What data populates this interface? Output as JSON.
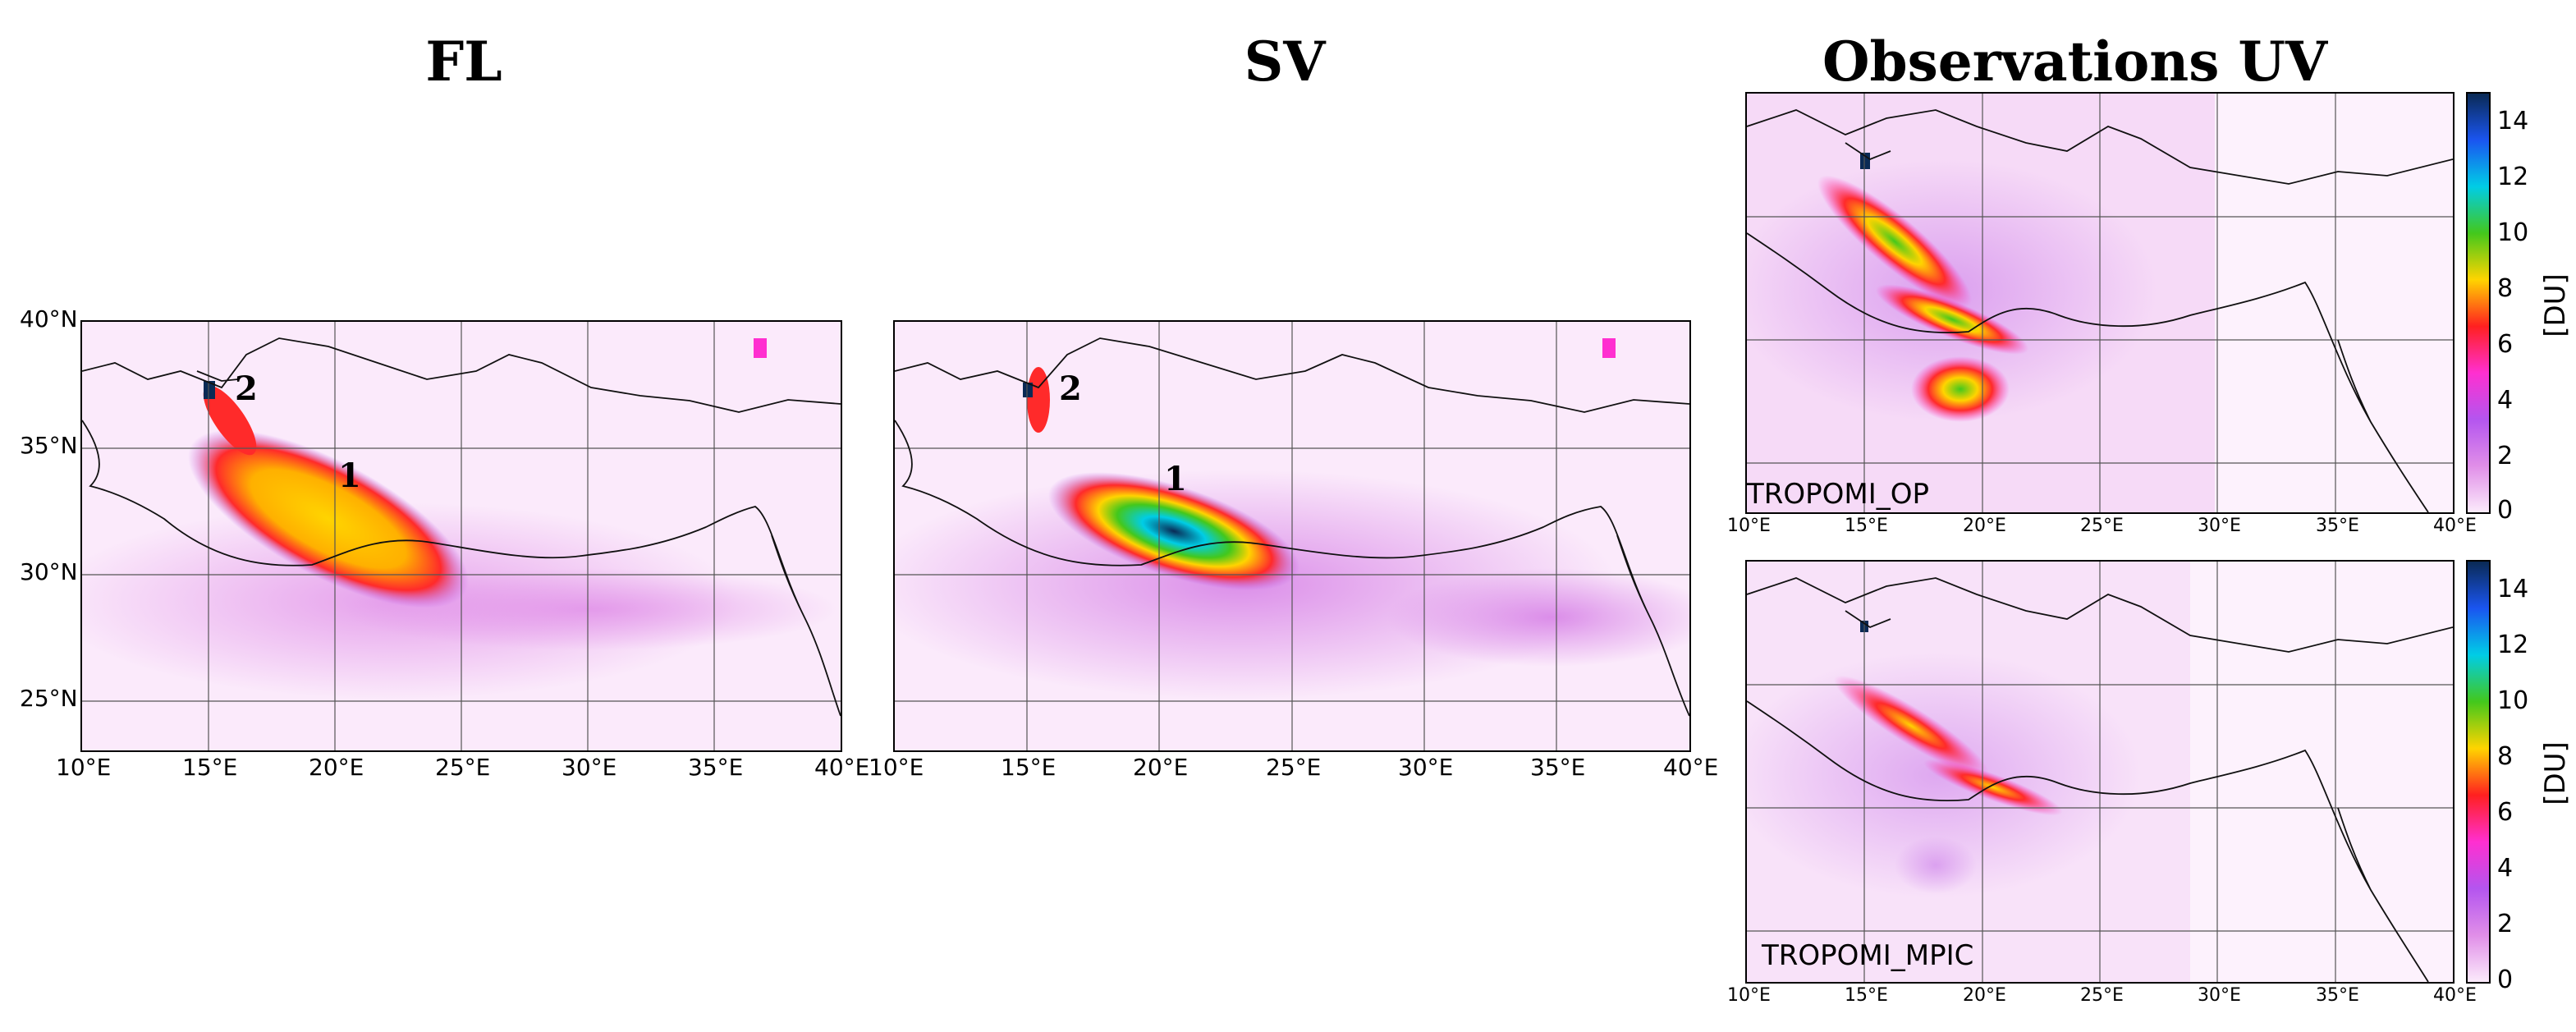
{
  "titles": {
    "fl": "FL",
    "sv": "SV",
    "obs": "Observations UV"
  },
  "lat_labels": [
    "40°N",
    "35°N",
    "30°N",
    "25°N"
  ],
  "lon_labels": [
    "10°E",
    "15°E",
    "20°E",
    "25°E",
    "30°E",
    "35°E",
    "40°E"
  ],
  "obs_lon_labels": [
    "10°E",
    "15°E",
    "20°E",
    "25°E",
    "30°E",
    "35°E",
    "40°E"
  ],
  "markers": {
    "one": "1",
    "two": "2"
  },
  "panels": {
    "top_right_label": "TROPOMI_OP",
    "bottom_right_label": "TROPOMI_MPIC"
  },
  "colorbar": {
    "unit": "[DU]",
    "ticks": [
      "14",
      "12",
      "10",
      "8",
      "6",
      "4",
      "2",
      "0"
    ],
    "min": 0,
    "max": 15,
    "colors": [
      "#fbeafb",
      "#e08ee8",
      "#b455ef",
      "#ff2fd0",
      "#ff2020",
      "#ffd400",
      "#43c81c",
      "#00cde6",
      "#1a55f0",
      "#0a2a55"
    ]
  }
}
